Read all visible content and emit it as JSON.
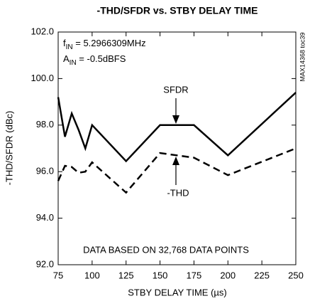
{
  "chart_data": {
    "type": "line",
    "title": "-THD/SFDR vs. STBY DELAY TIME",
    "x_label": "STBY DELAY TIME (µs)",
    "y_label": "-THD/SFDR (dBc)",
    "annotations": {
      "fin": {
        "main": "f",
        "sub": "IN",
        "rest": " = 5.2966309MHz"
      },
      "ain": {
        "main": "A",
        "sub": "IN",
        "rest": " = -0.5dBFS"
      },
      "note": "DATA BASED ON 32,768 DATA POINTS",
      "code": "MAX14368 toc39"
    },
    "xlim": [
      75,
      250
    ],
    "xticks": [
      75,
      100,
      125,
      150,
      175,
      200,
      225,
      250
    ],
    "ylim": [
      92,
      102
    ],
    "yticks": [
      {
        "value": 92,
        "label": "92.0"
      },
      {
        "value": 94,
        "label": "94.0"
      },
      {
        "value": 96,
        "label": "96.0"
      },
      {
        "value": 98,
        "label": "98.0"
      },
      {
        "value": 100,
        "label": "100.0"
      },
      {
        "value": 102,
        "label": "102.0"
      }
    ],
    "series": [
      {
        "name": "SFDR",
        "color": "#000000",
        "dash": false,
        "x": [
          75,
          80,
          85,
          90,
          95,
          100,
          125,
          150,
          175,
          200,
          250
        ],
        "values": [
          99.2,
          97.5,
          98.5,
          97.8,
          97.0,
          98.0,
          96.45,
          98.0,
          98.0,
          96.7,
          99.4
        ]
      },
      {
        "name": "-THD",
        "color": "#000000",
        "dash": true,
        "x": [
          75,
          80,
          85,
          90,
          95,
          100,
          125,
          150,
          175,
          200,
          250
        ],
        "values": [
          95.6,
          96.25,
          96.2,
          95.95,
          96.0,
          96.4,
          95.1,
          96.8,
          96.6,
          95.85,
          97.0
        ]
      }
    ]
  }
}
